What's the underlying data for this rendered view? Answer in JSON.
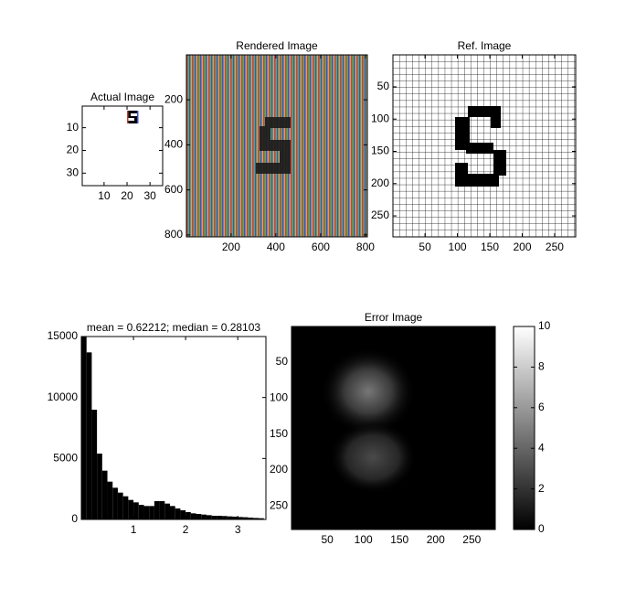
{
  "chart_data": [
    {
      "type": "image",
      "title": "Actual Image",
      "xlim": [
        0.5,
        35.5
      ],
      "ylim": [
        0.5,
        35.5
      ],
      "xticks": [
        10,
        20,
        30
      ],
      "yticks": [
        10,
        20,
        30
      ]
    },
    {
      "type": "image",
      "title": "Rendered Image",
      "xlim": [
        0.5,
        808.5
      ],
      "ylim": [
        0.5,
        808.5
      ],
      "xticks": [
        200,
        400,
        600,
        800
      ],
      "yticks": [
        200,
        400,
        600,
        800
      ]
    },
    {
      "type": "image",
      "title": "Ref. Image",
      "xlim": [
        0.5,
        282.5
      ],
      "ylim": [
        0.5,
        282.5
      ],
      "xticks": [
        50,
        100,
        150,
        200,
        250
      ],
      "yticks": [
        50,
        100,
        150,
        200,
        250
      ]
    },
    {
      "type": "histogram",
      "title": "mean = 0.62212; median = 0.28103",
      "color": "#000000",
      "bins": [
        0,
        0.1,
        0.2,
        0.3,
        0.4,
        0.5,
        0.6,
        0.7,
        0.8,
        0.9,
        1.0,
        1.1,
        1.2,
        1.3,
        1.4,
        1.5,
        1.6,
        1.7,
        1.8,
        1.9,
        2.0,
        2.1,
        2.2,
        2.3,
        2.4,
        2.5,
        2.6,
        2.7,
        2.8,
        2.9,
        3.0,
        3.1,
        3.2,
        3.3,
        3.4,
        3.5
      ],
      "counts": [
        15300,
        13700,
        9000,
        5400,
        4000,
        3100,
        2600,
        2200,
        1900,
        1600,
        1400,
        1200,
        1100,
        1100,
        1500,
        1500,
        1300,
        1100,
        900,
        750,
        600,
        500,
        450,
        400,
        350,
        300,
        300,
        280,
        250,
        230,
        200,
        180,
        150,
        120,
        100
      ],
      "xlim": [
        0,
        3.54
      ],
      "ylim": [
        0,
        15000
      ],
      "xticks": [
        1,
        2,
        3
      ],
      "yticks": [
        0,
        5000,
        10000,
        15000
      ]
    },
    {
      "type": "image",
      "title": "Error Image",
      "xlim": [
        0.5,
        282.5
      ],
      "ylim": [
        0.5,
        282.5
      ],
      "xticks": [
        50,
        100,
        150,
        200,
        250
      ],
      "yticks": [
        50,
        100,
        150,
        200,
        250
      ],
      "colorbar": {
        "lim": [
          0,
          10
        ],
        "ticks": [
          0,
          2,
          4,
          6,
          8,
          10
        ]
      }
    }
  ]
}
